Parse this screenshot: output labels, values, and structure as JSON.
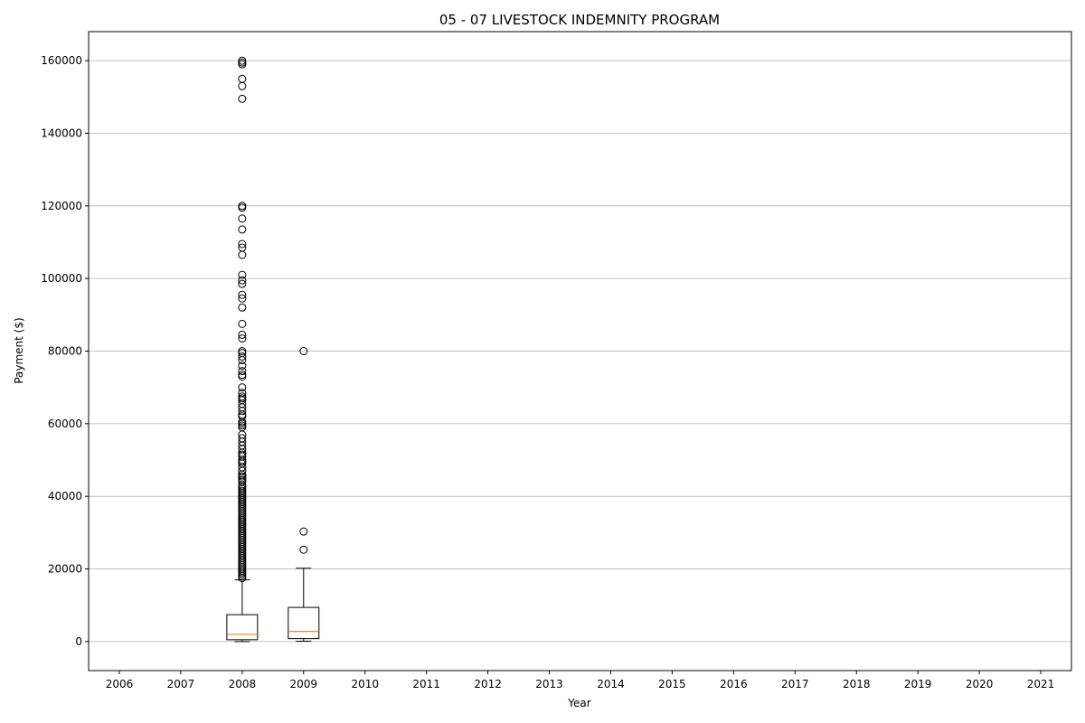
{
  "chart_data": {
    "type": "box",
    "title": "05 - 07 LIVESTOCK INDEMNITY PROGRAM",
    "xlabel": "Year",
    "ylabel": "Payment ($)",
    "categories": [
      "2006",
      "2007",
      "2008",
      "2009",
      "2010",
      "2011",
      "2012",
      "2013",
      "2014",
      "2015",
      "2016",
      "2017",
      "2018",
      "2019",
      "2020",
      "2021"
    ],
    "ylim": [
      -8000,
      168000
    ],
    "yticks": [
      0,
      20000,
      40000,
      60000,
      80000,
      100000,
      120000,
      140000,
      160000
    ],
    "ytick_labels": [
      "0",
      "20000",
      "40000",
      "60000",
      "80000",
      "100000",
      "120000",
      "140000",
      "160000"
    ],
    "grid": "y",
    "colors": {
      "box": "#000000",
      "median": "#ff7f0e",
      "grid": "#b0b0b0"
    },
    "boxes": [
      {
        "category": "2008",
        "whisker_low": 0,
        "q1": 500,
        "median": 2000,
        "q3": 7400,
        "whisker_high": 17000,
        "outliers": [
          160000,
          159500,
          159000,
          155000,
          153000,
          149500,
          120000,
          119500,
          116500,
          113500,
          109500,
          108500,
          106500,
          101000,
          99500,
          98500,
          95500,
          94500,
          92000,
          87500,
          84500,
          83500,
          80000,
          79500,
          78500,
          77500,
          76000,
          74500,
          73500,
          73000,
          70000,
          68500,
          67500,
          67000,
          66500,
          65500,
          64500,
          63500,
          62500,
          62000,
          60500,
          60000,
          59500,
          59000,
          57000,
          56000,
          55000,
          54000,
          53000,
          52000,
          51500,
          51000,
          50000,
          49500,
          49000,
          48000,
          47000,
          46000,
          45500,
          45000,
          44500,
          44000,
          43000,
          42500,
          42000,
          41500,
          41000,
          40500,
          40000,
          39500,
          39000,
          38500,
          38000,
          37500,
          37000,
          36500,
          36000,
          35500,
          35000,
          34500,
          34000,
          33500,
          33000,
          32500,
          32000,
          31500,
          31000,
          30500,
          30000,
          29500,
          29000,
          28500,
          28000,
          27500,
          27000,
          26500,
          26000,
          25500,
          25000,
          24500,
          24000,
          23500,
          23000,
          22500,
          22000,
          21500,
          21000,
          20500,
          20000,
          19500,
          19000,
          18500,
          18000,
          17500
        ]
      },
      {
        "category": "2009",
        "whisker_low": 100,
        "q1": 800,
        "median": 2800,
        "q3": 9400,
        "whisker_high": 20200,
        "outliers": [
          80000,
          30300,
          25300
        ]
      }
    ]
  }
}
